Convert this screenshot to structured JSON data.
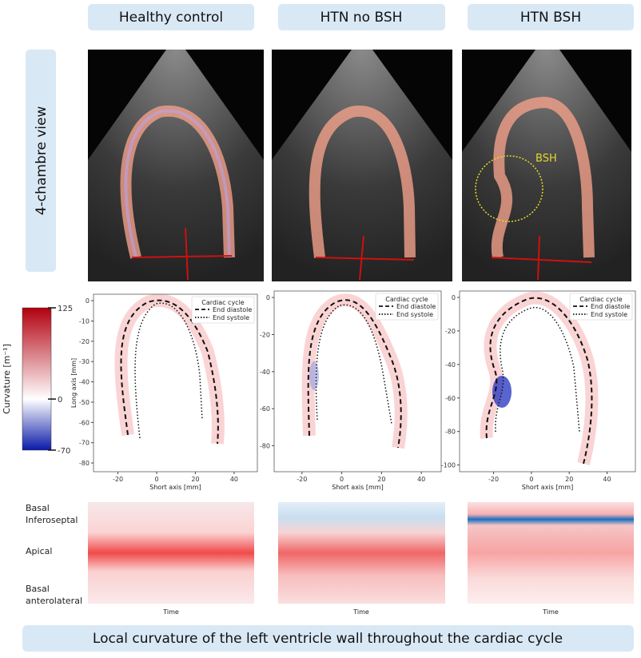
{
  "columns": [
    "Healthy control",
    "HTN no BSH",
    "HTN BSH"
  ],
  "row_label": "4-chambre view",
  "echo_annotation": "BSH",
  "colorbar": {
    "title": "Curvature [m⁻¹]",
    "ticks": [
      125,
      0,
      -70
    ]
  },
  "plots": [
    {
      "xlabel": "Short axis [mm]",
      "ylabel": "Long axis [mm]",
      "xlim": [
        -32.6,
        52
      ],
      "ylim": [
        -84.3,
        3.2
      ],
      "xticks": [
        -20,
        0,
        20,
        40
      ],
      "yticks": [
        0,
        -10,
        -20,
        -30,
        -40,
        -50,
        -60,
        -70,
        -80
      ],
      "legend": {
        "title": "Cardiac cycle",
        "entries": [
          "End diastole",
          "End systole"
        ]
      }
    },
    {
      "xlabel": "Short axis [mm]",
      "xlim": [
        -34,
        50
      ],
      "ylim": [
        -94,
        3.5
      ],
      "xticks": [
        -20,
        0,
        20,
        40
      ],
      "yticks": [
        0,
        -20,
        -40,
        -60,
        -80
      ],
      "legend": {
        "title": "Cardiac cycle",
        "entries": [
          "End diastole",
          "End systole"
        ]
      }
    },
    {
      "xlabel": "Short axis [mm]",
      "xlim": [
        -38,
        55
      ],
      "ylim": [
        -104,
        3.8
      ],
      "xticks": [
        -20,
        0,
        20,
        40
      ],
      "yticks": [
        0,
        -20,
        -40,
        -60,
        -80,
        -100
      ],
      "legend": {
        "title": "Cardiac cycle",
        "entries": [
          "End diastole",
          "End systole"
        ]
      }
    }
  ],
  "heatmap": {
    "row_labels": [
      [
        "Basal",
        "Inferoseptal"
      ],
      [
        "Apical"
      ],
      [
        "Basal",
        "anterolateral"
      ]
    ],
    "xlabel": "Time"
  },
  "caption": "Local curvature of the left ventricle wall throughout the cardiac cycle"
}
